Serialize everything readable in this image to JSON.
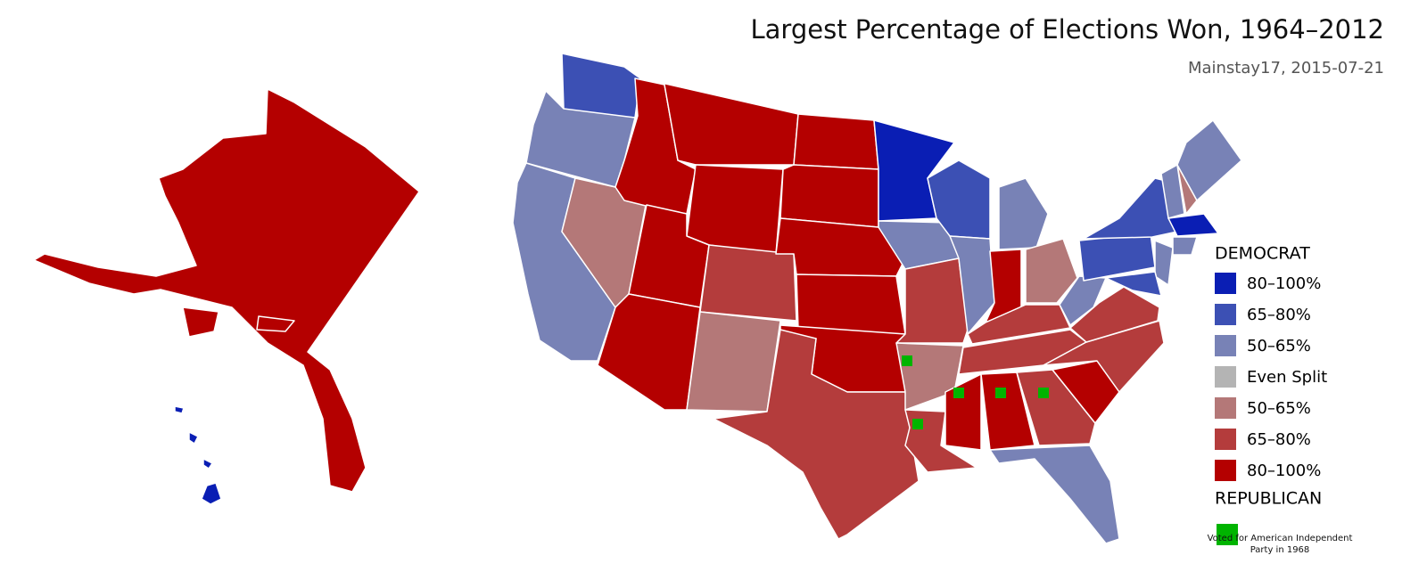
{
  "header": {
    "title": "Largest Percentage of Elections Won, 1964–2012",
    "subtitle": "Mainstay17, 2015-07-21"
  },
  "legend": {
    "top_label": "DEMOCRAT",
    "items": [
      {
        "label": "80–100%",
        "color": "#0a1eb4"
      },
      {
        "label": "65–80%",
        "color": "#3c50b4"
      },
      {
        "label": "50–65%",
        "color": "#7882b6"
      },
      {
        "label": "Even Split",
        "color": "#b4b4b4"
      },
      {
        "label": "50–65%",
        "color": "#b47878"
      },
      {
        "label": "65–80%",
        "color": "#b43c3c"
      },
      {
        "label": "80–100%",
        "color": "#b40000"
      }
    ],
    "bottom_label": "REPUBLICAN",
    "note": {
      "label": "Voted for American Independent Party in 1968",
      "color": "#00b400"
    }
  }
}
